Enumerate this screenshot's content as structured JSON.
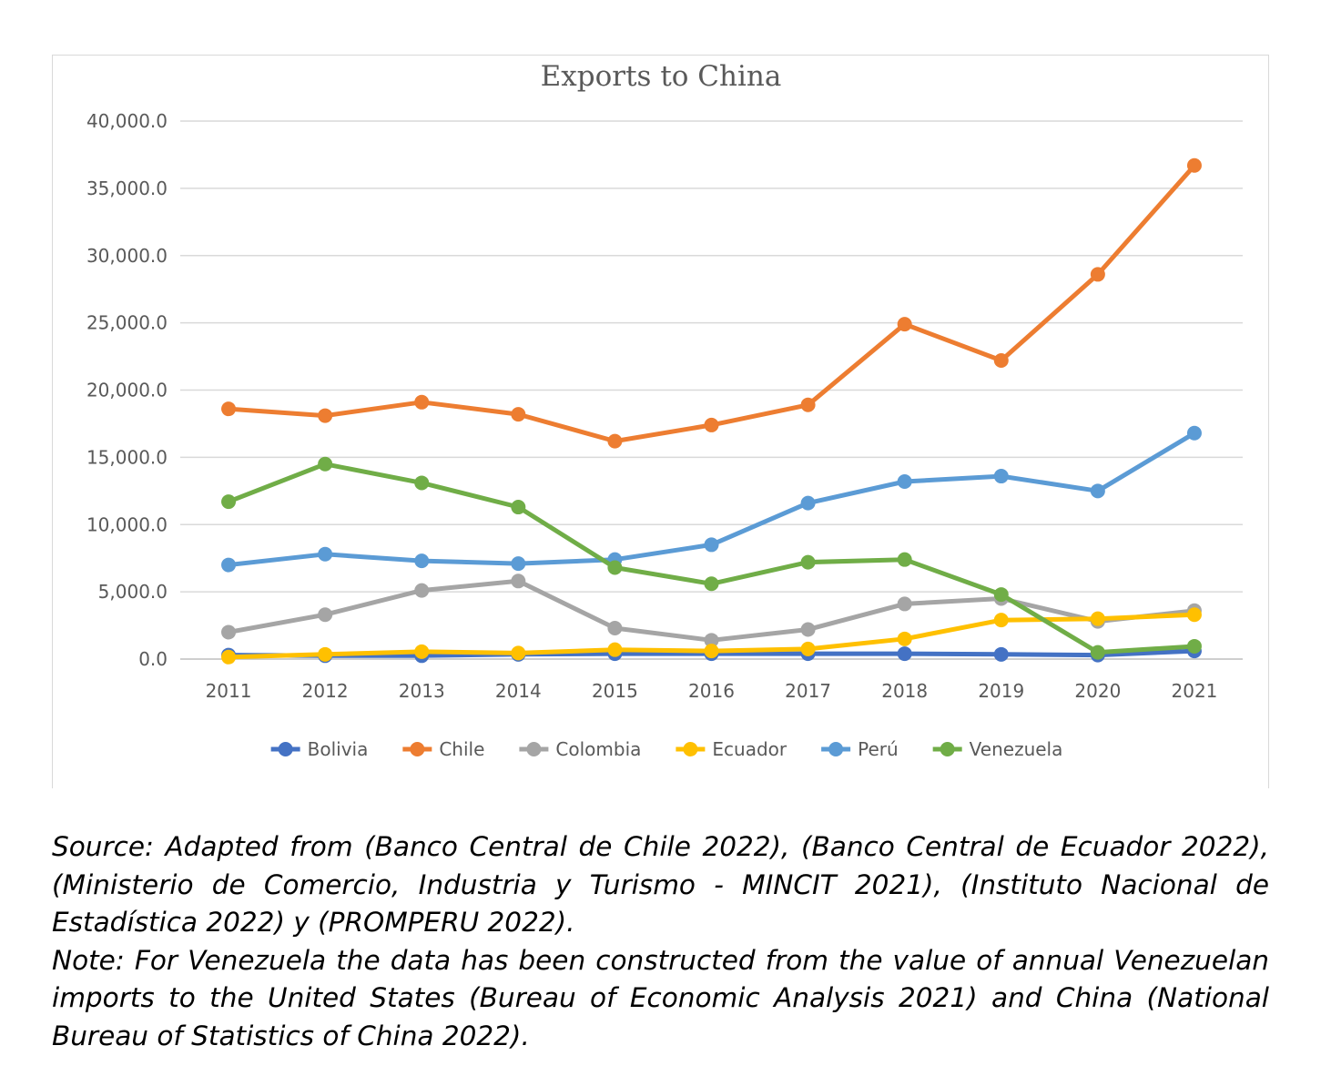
{
  "chart_data": {
    "type": "line",
    "title": "Exports to China",
    "xlabel": "",
    "ylabel": "",
    "x": [
      2011,
      2012,
      2013,
      2014,
      2015,
      2016,
      2017,
      2018,
      2019,
      2020,
      2021
    ],
    "y_ticks": [
      "0.0",
      "5,000.0",
      "10,000.0",
      "15,000.0",
      "20,000.0",
      "25,000.0",
      "30,000.0",
      "35,000.0",
      "40,000.0"
    ],
    "ylim": [
      0,
      40000
    ],
    "grid": true,
    "legend_position": "bottom",
    "series": [
      {
        "name": "Bolivia",
        "color": "#4472C4",
        "values": [
          300,
          250,
          250,
          350,
          400,
          400,
          400,
          400,
          350,
          300,
          600
        ]
      },
      {
        "name": "Chile",
        "color": "#ED7D31",
        "values": [
          18600,
          18100,
          19100,
          18200,
          16200,
          17400,
          18900,
          24900,
          22200,
          28600,
          36700
        ]
      },
      {
        "name": "Colombia",
        "color": "#A5A5A5",
        "values": [
          2000,
          3300,
          5100,
          5800,
          2300,
          1400,
          2200,
          4100,
          4500,
          2800,
          3600
        ]
      },
      {
        "name": "Ecuador",
        "color": "#FFC000",
        "values": [
          150,
          350,
          550,
          450,
          700,
          600,
          750,
          1500,
          2900,
          3000,
          3300
        ]
      },
      {
        "name": "Perú",
        "color": "#5B9BD5",
        "values": [
          7000,
          7800,
          7300,
          7100,
          7400,
          8500,
          11600,
          13200,
          13600,
          12500,
          16800
        ]
      },
      {
        "name": "Venezuela",
        "color": "#70AD47",
        "values": [
          11700,
          14500,
          13100,
          11300,
          6800,
          5600,
          7200,
          7400,
          4800,
          500,
          950
        ]
      }
    ]
  },
  "notes": {
    "source": "Source: Adapted from (Banco Central de Chile 2022), (Banco Central de Ecuador 2022), (Ministerio de Comercio, Industria y Turismo - MINCIT 2021), (Instituto Nacional de Estadística 2022) y (PROMPERU 2022).",
    "note": "Note: For Venezuela the data has been constructed from the value of annual Venezuelan imports to the United States (Bureau of Economic Analysis 2021) and China (National Bureau of Statistics of China 2022)."
  }
}
